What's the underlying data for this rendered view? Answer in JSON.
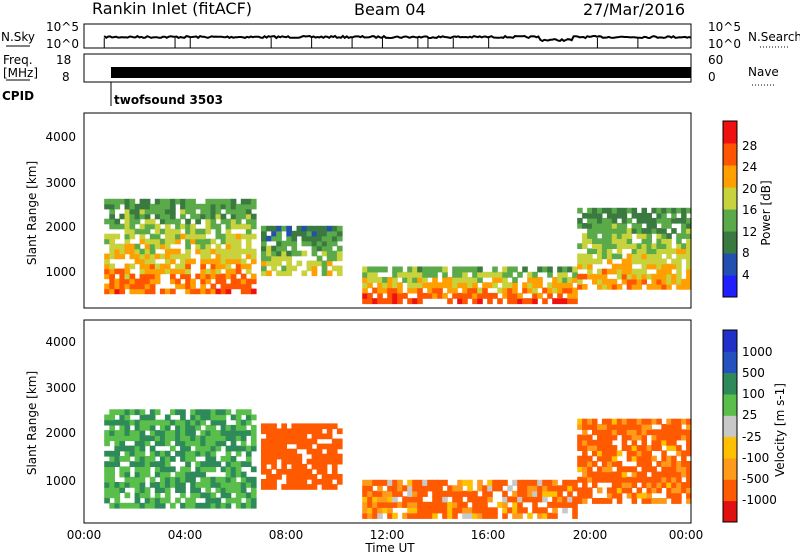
{
  "header": {
    "station": "Rankin Inlet (fitACF)",
    "beam": "Beam 04",
    "date": "27/Mar/2016"
  },
  "strip1": {
    "left_label": "N.Sky",
    "left_ticks": [
      "10^5",
      "10^0"
    ],
    "right_ticks": [
      "10^5",
      "10^0"
    ],
    "right_label": "N.Search"
  },
  "strip2": {
    "left_label_1": "Freq.",
    "left_label_2": "[MHz]",
    "left_ticks": [
      "18",
      "8"
    ],
    "right_ticks": [
      "60",
      "0"
    ],
    "right_label": "Nave"
  },
  "cpid": {
    "label": "CPID",
    "program": "twofsound 3503"
  },
  "colors": {
    "power": [
      "#1f1fff",
      "#2350b0",
      "#3a7a40",
      "#5aaa4a",
      "#c8d23c",
      "#ffa000",
      "#ff5500",
      "#ee1111"
    ],
    "velocity": [
      "#e01010",
      "#ff5a00",
      "#ff9a1a",
      "#ffc000",
      "#c8c8c8",
      "#5abf4a",
      "#2f8a5a",
      "#2550c0",
      "#2030c8"
    ]
  },
  "chart_data": [
    {
      "type": "heatmap",
      "parameter": "Power",
      "ylabel": "Slant Range [km]",
      "xlabel": "",
      "yticks": [
        "1000",
        "2000",
        "3000",
        "4000"
      ],
      "ylim": [
        180,
        4500
      ],
      "xlim_hours": [
        0,
        24
      ],
      "colorbar_label": "Power [dB]",
      "colorbar_ticks": [
        "4",
        "8",
        "12",
        "16",
        "20",
        "24",
        "28"
      ],
      "colorbar_range": [
        0,
        32
      ],
      "echo_regions": [
        {
          "t0": 0.8,
          "t1": 6.8,
          "r0": 500,
          "r1": 2600,
          "level": 24
        },
        {
          "t0": 7.0,
          "t1": 10.2,
          "r0": 900,
          "r1": 2000,
          "level": 18
        },
        {
          "t0": 11.0,
          "t1": 19.5,
          "r0": 280,
          "r1": 1100,
          "level": 26
        },
        {
          "t0": 19.5,
          "t1": 24.0,
          "r0": 600,
          "r1": 2400,
          "level": 22
        }
      ]
    },
    {
      "type": "heatmap",
      "parameter": "Velocity",
      "ylabel": "Slant Range [km]",
      "xlabel": "Time UT",
      "yticks": [
        "1000",
        "2000",
        "3000",
        "4000"
      ],
      "ylim": [
        180,
        4500
      ],
      "xticks": [
        "00:00",
        "04:00",
        "08:00",
        "12:00",
        "16:00",
        "20:00",
        "00:00"
      ],
      "xlim_hours": [
        0,
        24
      ],
      "colorbar_label": "Velocity [m s-1]",
      "colorbar_ticks": [
        "1000",
        "500",
        "100",
        "25",
        "-25",
        "-100",
        "-500",
        "-1000"
      ],
      "echo_regions": [
        {
          "t0": 0.8,
          "t1": 6.8,
          "r0": 500,
          "r1": 2600,
          "velocity": 500
        },
        {
          "t0": 7.0,
          "t1": 10.2,
          "r0": 900,
          "r1": 2300,
          "velocity": -300
        },
        {
          "t0": 11.0,
          "t1": 19.5,
          "r0": 280,
          "r1": 1100,
          "velocity": -150
        },
        {
          "t0": 19.5,
          "t1": 24.0,
          "r0": 600,
          "r1": 2400,
          "velocity": -200
        }
      ]
    }
  ]
}
